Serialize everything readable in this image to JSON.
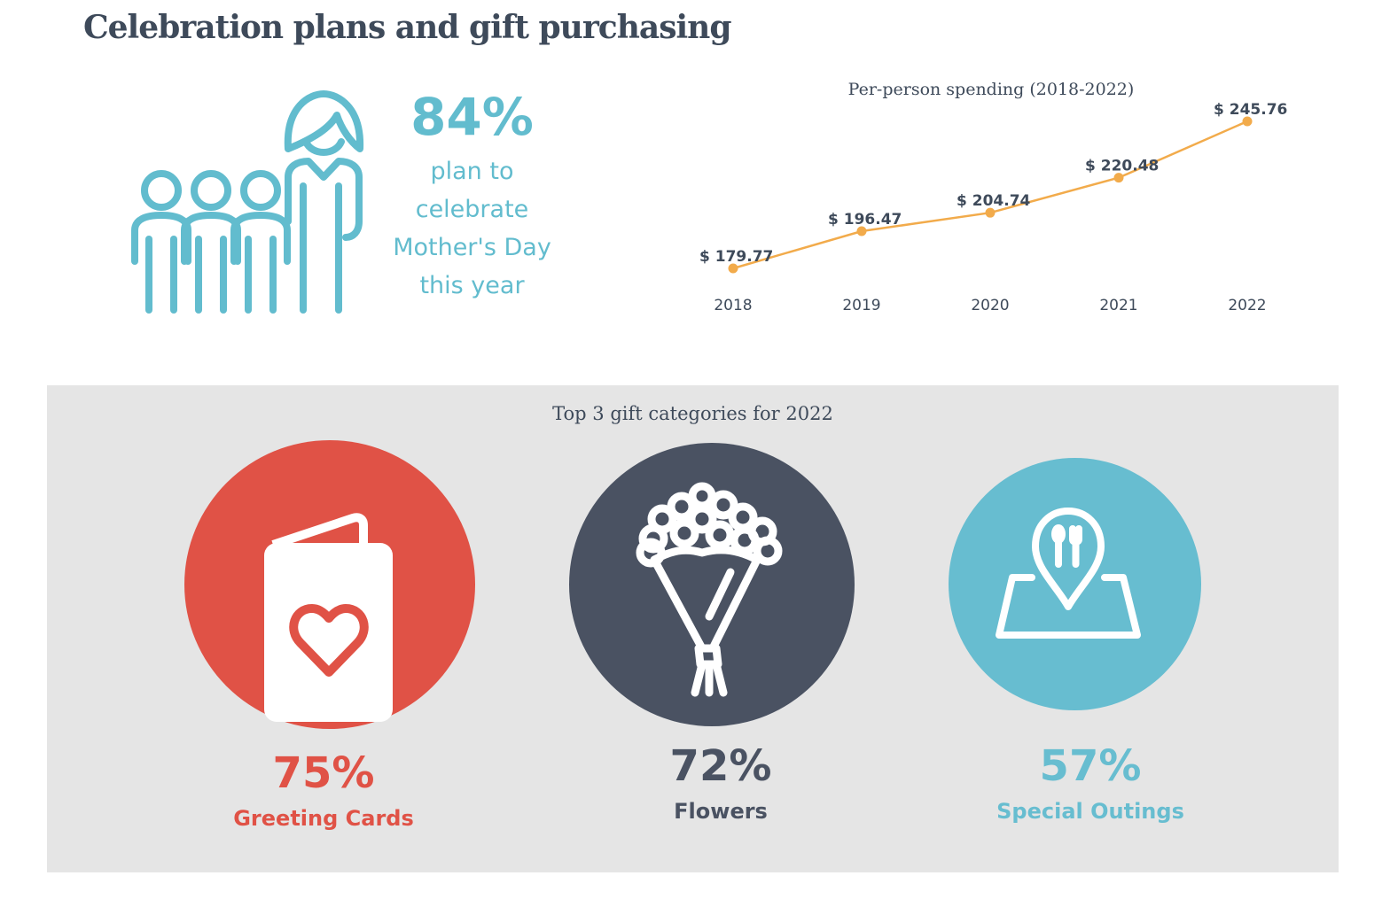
{
  "page": {
    "title": "Celebration plans and gift purchasing"
  },
  "celebrate_stat": {
    "percent": "84%",
    "text_lines": [
      "plan to",
      "celebrate",
      "Mother's Day",
      "this year"
    ],
    "icon": "family-icon",
    "color": "#62bcce"
  },
  "spending_chart_title": "Per-person spending (2018-2022)",
  "chart_data": [
    {
      "type": "line",
      "title": "Per-person spending (2018-2022)",
      "x": [
        "2018",
        "2019",
        "2020",
        "2021",
        "2022"
      ],
      "series": [
        {
          "values": [
            179.77,
            196.47,
            204.74,
            220.48,
            245.76
          ],
          "color": "#f2ab4b"
        }
      ],
      "data_labels": [
        "$ 179.77",
        "$  196.47",
        "$   204.74",
        "$ 220.48",
        "$ 245.76"
      ],
      "xlabel": "",
      "ylabel": "",
      "grid": false,
      "legend": "none"
    },
    {
      "type": "bar",
      "title": "Top 3 gift categories for 2022",
      "categories": [
        "Greeting Cards",
        "Flowers",
        "Special Outings"
      ],
      "values": [
        75,
        72,
        57
      ],
      "unit": "%",
      "colors": [
        "#e05246",
        "#4a5262",
        "#67bdd0"
      ]
    }
  ],
  "gifts": {
    "title": "Top 3 gift categories for 2022",
    "items": [
      {
        "pct": "75%",
        "label": "Greeting Cards",
        "icon": "greeting-card-icon",
        "color": "#e05246"
      },
      {
        "pct": "72%",
        "label": "Flowers",
        "icon": "flower-bouquet-icon",
        "color": "#4a5262"
      },
      {
        "pct": "57%",
        "label": "Special Outings",
        "icon": "restaurant-map-pin-icon",
        "color": "#67bdd0"
      }
    ]
  }
}
